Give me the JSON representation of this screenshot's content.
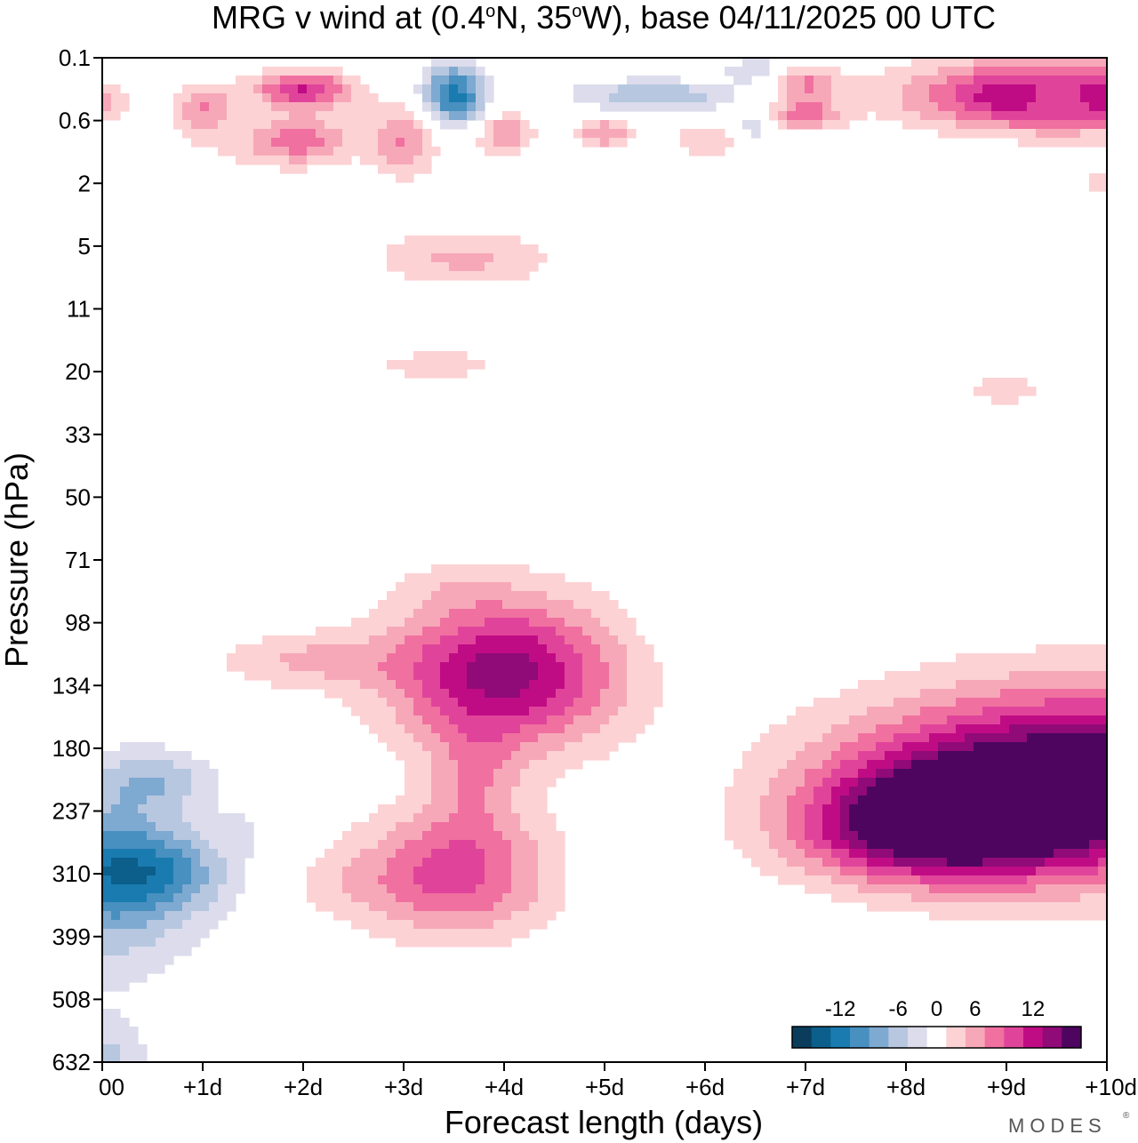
{
  "chart_data": {
    "type": "heatmap",
    "title": "MRG v wind at (0.4°N, 35°W),  base 04/11/2025  00 UTC",
    "title_parts": {
      "prefix": "MRG v wind at (0.4",
      "deg1": "o",
      "mid": "N, 35",
      "deg2": "o",
      "suffix": "W),  base 04/11/2025  00 UTC"
    },
    "xlabel": "Forecast length (days)",
    "ylabel": "Pressure (hPa)",
    "xlim": [
      0,
      10
    ],
    "x_ticks": [
      0,
      1,
      2,
      3,
      4,
      5,
      6,
      7,
      8,
      9,
      10
    ],
    "x_tick_labels": [
      "00",
      "+1d",
      "+2d",
      "+3d",
      "+4d",
      "+5d",
      "+6d",
      "+7d",
      "+8d",
      "+9d",
      "+10d"
    ],
    "y_tick_labels": [
      "0.1",
      "0.6",
      "2",
      "5",
      "11",
      "20",
      "33",
      "50",
      "71",
      "98",
      "134",
      "180",
      "237",
      "310",
      "399",
      "508",
      "632"
    ],
    "y_axis": "log-pressure, top to bottom",
    "colorbar": {
      "labels": [
        "-12",
        "-6",
        "0",
        "6",
        "12"
      ],
      "colors": [
        "#0a3d5c",
        "#0b5f8a",
        "#1a7bb0",
        "#4790c0",
        "#7ea9d1",
        "#b7c7e0",
        "#dcdcec",
        "#ffffff",
        "#fcd2d4",
        "#f7a8b8",
        "#f070a0",
        "#e0449a",
        "#c00c84",
        "#900a78",
        "#4d0560"
      ],
      "label_positions": [
        2,
        5,
        7,
        9,
        12
      ]
    },
    "contour_blobs": [
      {
        "x": 0.0,
        "y": 13.0,
        "rx": 0.95,
        "ry": 1.55,
        "v": -8
      },
      {
        "x": 0.5,
        "y": 13.0,
        "rx": 0.75,
        "ry": 0.62,
        "v": -6
      },
      {
        "x": 0.55,
        "y": 11.5,
        "rx": 0.55,
        "ry": 0.45,
        "v": -4
      },
      {
        "x": 0.05,
        "y": 15.9,
        "rx": 0.4,
        "ry": 0.6,
        "v": -4
      },
      {
        "x": 1.4,
        "y": 12.3,
        "rx": 0.25,
        "ry": 0.4,
        "v": -1.5
      },
      {
        "x": 5.3,
        "y": 15.2,
        "rx": 0.8,
        "ry": 0.45,
        "v": -2
      },
      {
        "x": 6.2,
        "y": 9.0,
        "rx": 0.8,
        "ry": 0.5,
        "v": -1.5
      },
      {
        "x": 6.3,
        "y": 7.0,
        "rx": 1.0,
        "ry": 0.3,
        "v": -1.2
      },
      {
        "x": 5.8,
        "y": 3.2,
        "rx": 0.6,
        "ry": 0.35,
        "v": -1.2
      },
      {
        "x": 5.3,
        "y": 5.6,
        "rx": 0.9,
        "ry": 0.4,
        "v": -1.2
      },
      {
        "x": 2.0,
        "y": 7.6,
        "rx": 0.7,
        "ry": 0.25,
        "v": -1.2
      },
      {
        "x": 1.1,
        "y": 8.1,
        "rx": 0.6,
        "ry": 0.25,
        "v": -1.2
      },
      {
        "x": 0.4,
        "y": 2.5,
        "rx": 0.7,
        "ry": 0.35,
        "v": -1.5
      },
      {
        "x": 4.1,
        "y": 5.1,
        "rx": 0.5,
        "ry": 0.35,
        "v": -1.2
      },
      {
        "x": 8.5,
        "y": 4.5,
        "rx": 0.8,
        "ry": 0.3,
        "v": -1.2
      },
      {
        "x": 9.9,
        "y": 4.0,
        "rx": 0.5,
        "ry": 0.5,
        "v": -1.8
      },
      {
        "x": 9.3,
        "y": 2.0,
        "rx": 0.5,
        "ry": 0.35,
        "v": -2.5
      },
      {
        "x": 4.6,
        "y": 13.0,
        "rx": 0.7,
        "ry": 0.3,
        "v": -1.0
      },
      {
        "x": 3.5,
        "y": 0.6,
        "rx": 0.32,
        "ry": 0.5,
        "v": -11
      },
      {
        "x": 5.5,
        "y": 0.6,
        "rx": 0.8,
        "ry": 0.25,
        "v": -6
      },
      {
        "x": 6.5,
        "y": 0.2,
        "rx": 0.3,
        "ry": 0.2,
        "v": -4
      },
      {
        "x": 6.5,
        "y": 1.1,
        "rx": 0.2,
        "ry": 0.2,
        "v": -4
      },
      {
        "x": 9.5,
        "y": 0.6,
        "rx": 0.4,
        "ry": 0.3,
        "v": -5
      },
      {
        "x": 4.0,
        "y": 9.8,
        "rx": 1.15,
        "ry": 1.2,
        "v": 13
      },
      {
        "x": 3.5,
        "y": 13.0,
        "rx": 1.0,
        "ry": 1.0,
        "v": 9
      },
      {
        "x": 3.7,
        "y": 11.5,
        "rx": 0.45,
        "ry": 0.9,
        "v": 4
      },
      {
        "x": 2.0,
        "y": 9.6,
        "rx": 0.9,
        "ry": 0.45,
        "v": 4
      },
      {
        "x": 2.3,
        "y": 13.2,
        "rx": 0.55,
        "ry": 0.5,
        "v": 1.6
      },
      {
        "x": 3.5,
        "y": 8.4,
        "rx": 0.6,
        "ry": 0.35,
        "v": 1.5
      },
      {
        "x": 7.0,
        "y": 8.7,
        "rx": 0.3,
        "ry": 0.25,
        "v": 2
      },
      {
        "x": 9.9,
        "y": 11.5,
        "rx": 2.3,
        "ry": 1.45,
        "v": 17
      },
      {
        "x": 8.5,
        "y": 12.1,
        "rx": 1.35,
        "ry": 0.95,
        "v": 12
      },
      {
        "x": 7.9,
        "y": 12.4,
        "rx": 1.1,
        "ry": 0.7,
        "v": 4
      },
      {
        "x": 3.6,
        "y": 3.2,
        "rx": 0.9,
        "ry": 0.45,
        "v": 4.5
      },
      {
        "x": 3.4,
        "y": 4.9,
        "rx": 0.9,
        "ry": 0.3,
        "v": 3
      },
      {
        "x": 2.2,
        "y": 5.6,
        "rx": 0.7,
        "ry": 0.3,
        "v": 1.5
      },
      {
        "x": 8.0,
        "y": 3.3,
        "rx": 0.4,
        "ry": 0.4,
        "v": 2
      },
      {
        "x": 10.0,
        "y": 2.0,
        "rx": 0.6,
        "ry": 0.35,
        "v": 3
      },
      {
        "x": 9.0,
        "y": 5.3,
        "rx": 0.7,
        "ry": 0.35,
        "v": 2.5
      },
      {
        "x": 2.0,
        "y": 0.5,
        "rx": 0.5,
        "ry": 0.3,
        "v": 10
      },
      {
        "x": 1.0,
        "y": 0.8,
        "rx": 0.3,
        "ry": 0.4,
        "v": 6
      },
      {
        "x": 0.0,
        "y": 0.7,
        "rx": 0.25,
        "ry": 0.3,
        "v": 5
      },
      {
        "x": 2.0,
        "y": 1.3,
        "rx": 0.5,
        "ry": 0.4,
        "v": 6
      },
      {
        "x": 3.0,
        "y": 1.3,
        "rx": 0.35,
        "ry": 0.6,
        "v": 6
      },
      {
        "x": 4.0,
        "y": 1.2,
        "rx": 0.3,
        "ry": 0.35,
        "v": 6
      },
      {
        "x": 5.0,
        "y": 1.2,
        "rx": 0.3,
        "ry": 0.25,
        "v": 6
      },
      {
        "x": 6.0,
        "y": 1.3,
        "rx": 0.3,
        "ry": 0.25,
        "v": 4
      },
      {
        "x": 7.0,
        "y": 0.4,
        "rx": 0.35,
        "ry": 0.25,
        "v": 6
      },
      {
        "x": 7.0,
        "y": 0.9,
        "rx": 0.35,
        "ry": 0.25,
        "v": 7
      },
      {
        "x": 9.5,
        "y": 0.6,
        "rx": 1.4,
        "ry": 0.55,
        "v": 14
      },
      {
        "x": 7.0,
        "y": 2.1,
        "rx": 0.9,
        "ry": 0.6,
        "v": 2
      },
      {
        "x": 1.5,
        "y": 1.4,
        "rx": 0.8,
        "ry": 0.4,
        "v": 2
      }
    ]
  },
  "branding": {
    "logo_text": "MODES"
  }
}
